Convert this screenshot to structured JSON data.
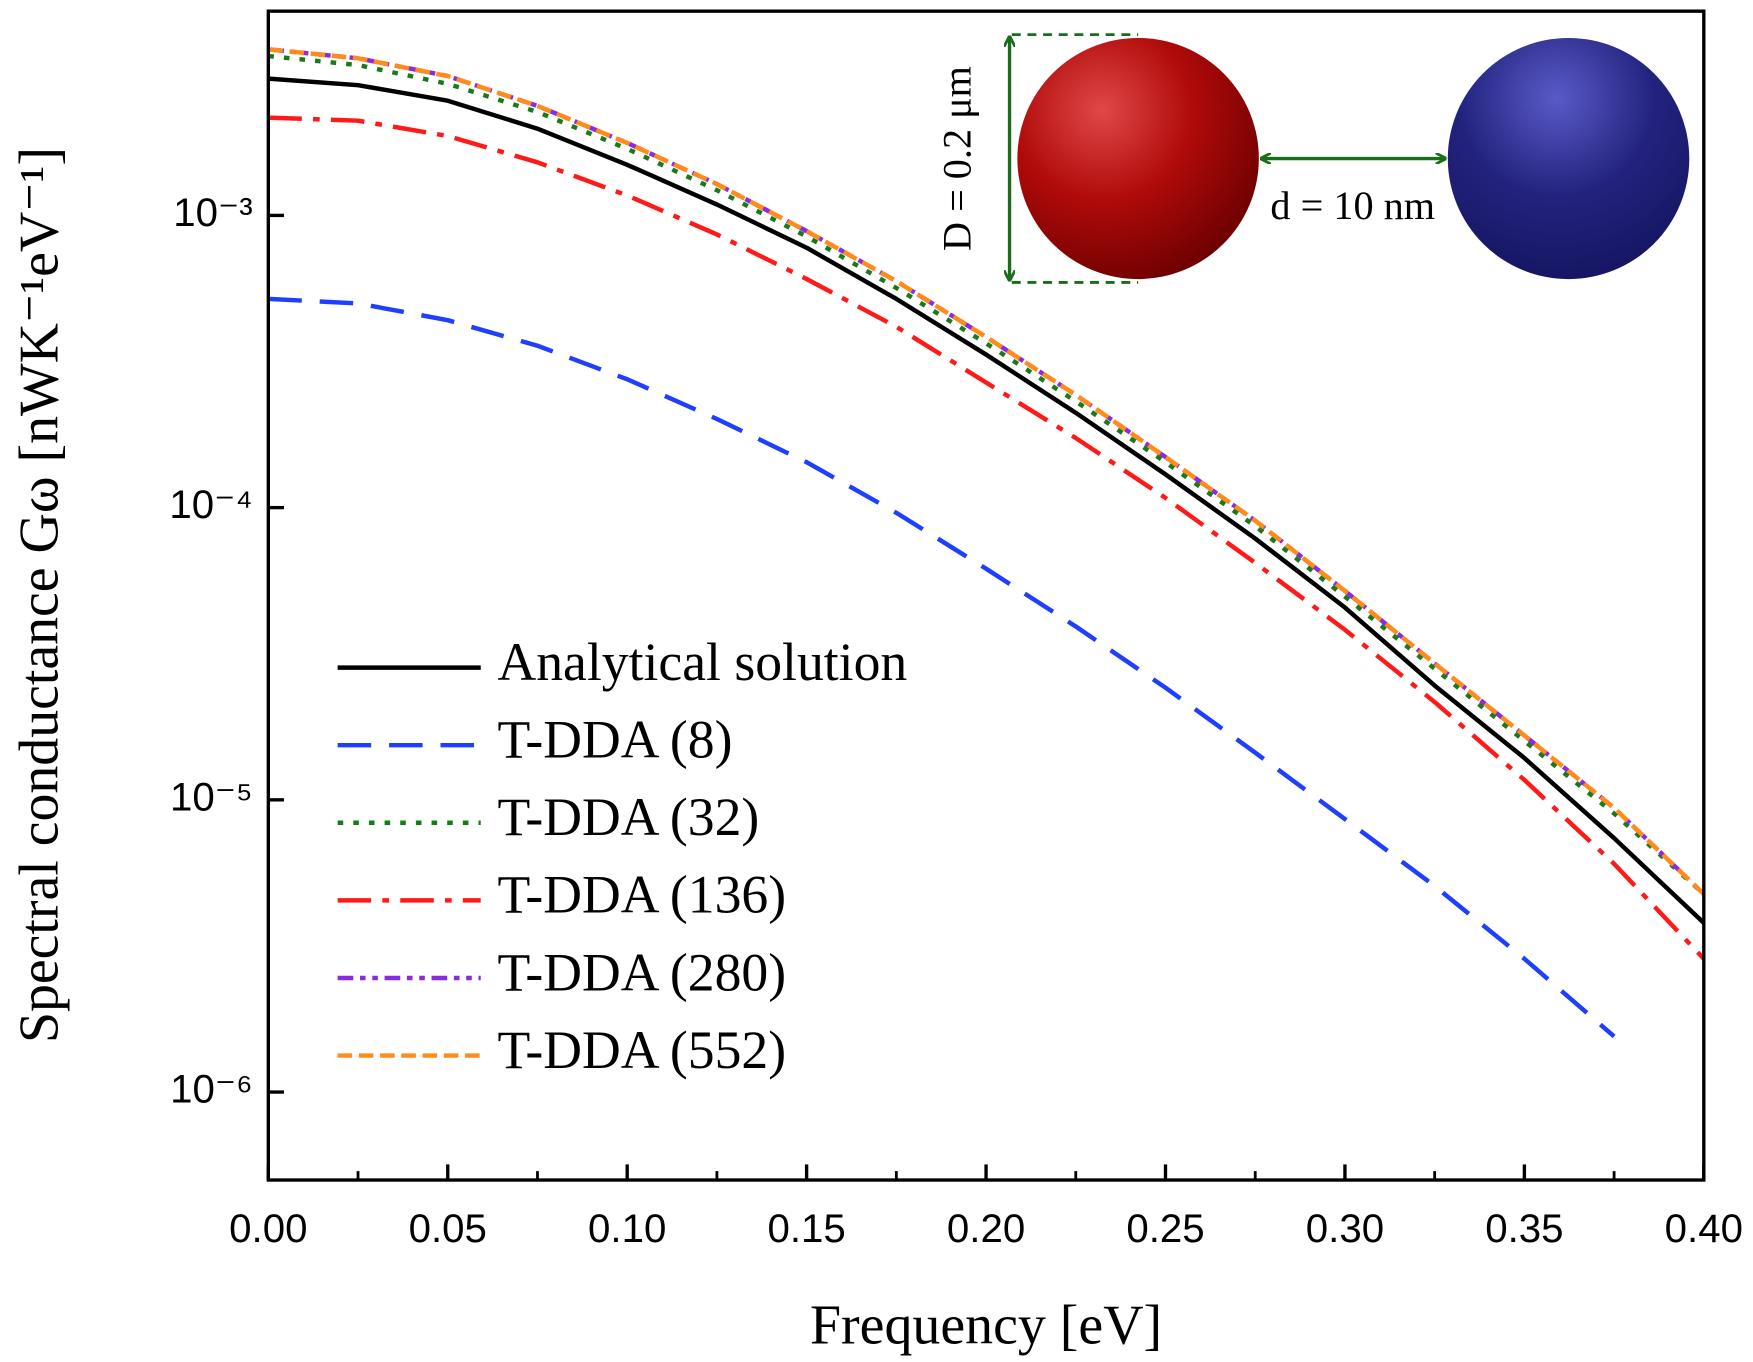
{
  "chart_data": {
    "type": "line",
    "xlabel": "Frequency [eV]",
    "ylabel": "Spectral conductance Gω  [nWK⁻¹eV⁻¹]",
    "x": [
      0,
      0.025,
      0.05,
      0.075,
      0.1,
      0.125,
      0.15,
      0.175,
      0.2,
      0.225,
      0.25,
      0.275,
      0.3,
      0.325,
      0.35,
      0.375,
      0.4
    ],
    "xlim": [
      0,
      0.4
    ],
    "xticks": [
      {
        "value": 0,
        "label": "0.00"
      },
      {
        "value": 0.05,
        "label": "0.05"
      },
      {
        "value": 0.1,
        "label": "0.10"
      },
      {
        "value": 0.15,
        "label": "0.15"
      },
      {
        "value": 0.2,
        "label": "0.20"
      },
      {
        "value": 0.25,
        "label": "0.25"
      },
      {
        "value": 0.3,
        "label": "0.30"
      },
      {
        "value": 0.35,
        "label": "0.35"
      },
      {
        "value": 0.4,
        "label": "0.40"
      }
    ],
    "ylim": [
      5e-07,
      0.005
    ],
    "yscale": "log",
    "yticks": [
      {
        "value": 1e-06,
        "label": "10⁻⁶"
      },
      {
        "value": 1e-05,
        "label": "10⁻⁵"
      },
      {
        "value": 0.0001,
        "label": "10⁻⁴"
      },
      {
        "value": 0.001,
        "label": "10⁻³"
      }
    ],
    "grid": false,
    "legend": "lower-left",
    "series": [
      {
        "name": "Analytical solution",
        "color": "#000000",
        "linestyle": "solid",
        "values": [
          0.00294,
          0.00279,
          0.00247,
          0.00198,
          0.00149,
          0.00109,
          0.000775,
          0.000518,
          0.000334,
          0.000211,
          0.00013,
          7.84e-05,
          4.55e-05,
          2.46e-05,
          1.39e-05,
          7.39e-06,
          3.79e-06
        ]
      },
      {
        "name": "T-DDA (8)",
        "color": "#1f3fff",
        "linestyle": "dashed",
        "values": [
          0.000518,
          0.0005,
          0.000438,
          0.000358,
          0.000275,
          0.000201,
          0.000143,
          9.6e-05,
          6.18e-05,
          3.92e-05,
          2.42e-05,
          1.45e-05,
          8.59e-06,
          5.07e-06,
          2.86e-06,
          1.55e-06,
          null
        ]
      },
      {
        "name": "T-DDA (32)",
        "color": "#1a7a1a",
        "linestyle": "dotted",
        "values": [
          0.00351,
          0.00327,
          0.00282,
          0.00226,
          0.00169,
          0.00122,
          0.000847,
          0.000565,
          0.000365,
          0.000231,
          0.000143,
          8.64e-05,
          4.96e-05,
          2.81e-05,
          1.59e-05,
          8.98e-06,
          4.76e-06
        ]
      },
      {
        "name": "T-DDA (136)",
        "color": "#ff1a1a",
        "linestyle": "dashdot",
        "values": [
          0.00216,
          0.00211,
          0.00187,
          0.00152,
          0.00117,
          0.000861,
          0.000606,
          0.000416,
          0.000268,
          0.000173,
          0.000108,
          6.47e-05,
          3.82e-05,
          2.16e-05,
          1.17e-05,
          6.04e-06,
          2.86e-06
        ]
      },
      {
        "name": "T-DDA (280)",
        "color": "#8a2be2",
        "linestyle": "dashdotdot",
        "values": [
          0.0037,
          0.00345,
          0.003,
          0.00237,
          0.00177,
          0.00128,
          0.000884,
          0.000596,
          0.000384,
          0.000243,
          0.000149,
          9.02e-05,
          5.19e-05,
          2.93e-05,
          1.66e-05,
          9.38e-06,
          4.76e-06
        ]
      },
      {
        "name": "T-DDA (552)",
        "color": "#ff8c1a",
        "linestyle": "shortdash",
        "values": [
          0.0037,
          0.00345,
          0.003,
          0.00237,
          0.00177,
          0.00128,
          0.000884,
          0.000596,
          0.000384,
          0.000243,
          0.000149,
          9.02e-05,
          5.19e-05,
          2.93e-05,
          1.66e-05,
          9.38e-06,
          4.76e-06
        ]
      }
    ],
    "inset": {
      "diameter_label": "D = 0.2 μm",
      "gap_label": "d = 10 nm"
    }
  }
}
